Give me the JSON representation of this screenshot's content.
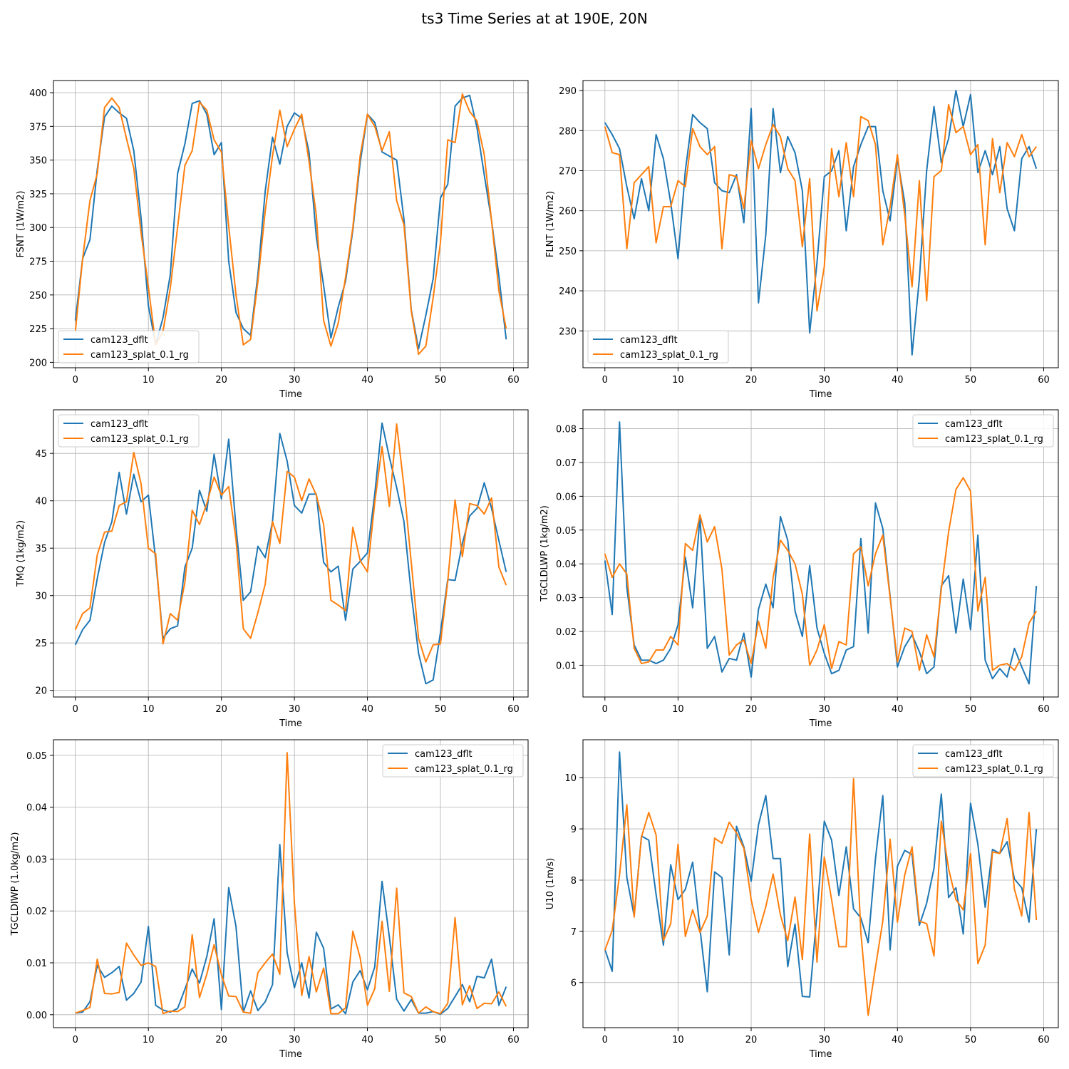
{
  "figure": {
    "title": "ts3 Time Series at at 190E, 20N"
  },
  "colors": {
    "dflt": "#1f77b4",
    "splat": "#ff7f0e",
    "grid": "#b0b0b0"
  },
  "chart_data": [
    {
      "type": "line",
      "xlabel": "Time",
      "ylabel": "FSNT (1W/m2)",
      "xlim": [
        -3,
        62
      ],
      "ylim": [
        196,
        409
      ],
      "xticks": [
        0,
        10,
        20,
        30,
        40,
        50,
        60
      ],
      "yticks": [
        200,
        225,
        250,
        275,
        300,
        325,
        350,
        375,
        400
      ],
      "ytick_labels": [
        "200",
        "225",
        "250",
        "275",
        "300",
        "325",
        "350",
        "375",
        "400"
      ],
      "grid": true,
      "legend_position": "lower-left",
      "series": [
        {
          "name": "cam123_dflt",
          "color": "#1f77b4",
          "values": [
            231,
            277,
            291,
            343,
            382,
            390,
            385,
            381,
            357,
            307,
            242,
            213,
            233,
            265,
            340,
            362,
            392,
            394,
            384,
            354,
            363,
            275,
            237,
            225,
            220,
            265,
            327,
            367,
            347,
            375,
            385,
            381,
            356,
            293,
            257,
            218,
            241,
            260,
            298,
            348,
            384,
            378,
            356,
            353,
            350,
            306,
            239,
            210,
            235,
            262,
            322,
            332,
            390,
            396,
            398,
            374,
            339,
            305,
            264,
            217
          ]
        },
        {
          "name": "cam123_splat_0.1_rg",
          "color": "#ff7f0e",
          "values": [
            223,
            277,
            320,
            340,
            389,
            396,
            389,
            366,
            344,
            296,
            256,
            213,
            223,
            255,
            300,
            346,
            357,
            393,
            387,
            365,
            356,
            301,
            250,
            213,
            217,
            260,
            312,
            353,
            387,
            360,
            373,
            384,
            349,
            309,
            231,
            212,
            229,
            263,
            300,
            353,
            384,
            375,
            357,
            371,
            320,
            302,
            238,
            206,
            212,
            248,
            289,
            365,
            363,
            399,
            386,
            379,
            354,
            305,
            253,
            225
          ]
        }
      ]
    },
    {
      "type": "line",
      "xlabel": "Time",
      "ylabel": "FLNT (1W/m2)",
      "xlim": [
        -3,
        62
      ],
      "ylim": [
        220.8,
        292.5
      ],
      "xticks": [
        0,
        10,
        20,
        30,
        40,
        50,
        60
      ],
      "yticks": [
        230,
        240,
        250,
        260,
        270,
        280,
        290
      ],
      "ytick_labels": [
        "230",
        "240",
        "250",
        "260",
        "270",
        "280",
        "290"
      ],
      "grid": true,
      "legend_position": "lower-left",
      "series": [
        {
          "name": "cam123_dflt",
          "color": "#1f77b4",
          "values": [
            282,
            279,
            275.5,
            266,
            258,
            268,
            260,
            279,
            273,
            262,
            248,
            270,
            284,
            282,
            280.5,
            267,
            265,
            264.5,
            269,
            257,
            285.5,
            237,
            254,
            285.5,
            269.5,
            278.5,
            274.5,
            265,
            229.5,
            247,
            268.5,
            270,
            275,
            255,
            271,
            276.5,
            281,
            281,
            265,
            257.5,
            273,
            262,
            224,
            243,
            270,
            286,
            272,
            278,
            290,
            281,
            289,
            269.5,
            275,
            269,
            276,
            260.5,
            255,
            273,
            276,
            270.5
          ]
        },
        {
          "name": "cam123_splat_0.1_rg",
          "color": "#ff7f0e",
          "values": [
            281,
            274.5,
            274,
            250.5,
            267,
            269,
            271,
            252,
            261,
            261,
            267.5,
            266,
            280.5,
            276,
            274,
            276,
            250.5,
            269,
            268.5,
            260.5,
            277.5,
            270.5,
            276.5,
            281.5,
            278.5,
            270.5,
            267.5,
            251,
            268,
            235,
            246,
            275.5,
            263.5,
            277,
            263.5,
            283.5,
            282.5,
            276.5,
            251.5,
            261,
            274,
            259,
            241,
            267.5,
            237.5,
            268.5,
            270,
            286.5,
            279.5,
            281,
            274,
            276.5,
            251.5,
            278,
            264.5,
            277,
            273.5,
            279,
            273.5,
            276
          ]
        }
      ]
    },
    {
      "type": "line",
      "xlabel": "Time",
      "ylabel": "TMQ (1kg/m2)",
      "xlim": [
        -3,
        62
      ],
      "ylim": [
        19.3,
        49.6
      ],
      "xticks": [
        0,
        10,
        20,
        30,
        40,
        50,
        60
      ],
      "yticks": [
        20,
        25,
        30,
        35,
        40,
        45
      ],
      "ytick_labels": [
        "20",
        "25",
        "30",
        "35",
        "40",
        "45"
      ],
      "grid": true,
      "legend_position": "upper-left",
      "series": [
        {
          "name": "cam123_dflt",
          "color": "#1f77b4",
          "values": [
            24.8,
            26.4,
            27.4,
            31.8,
            35.6,
            37.8,
            43.0,
            38.6,
            42.8,
            39.9,
            40.6,
            33.8,
            25.5,
            26.5,
            26.8,
            33.0,
            35.0,
            41.1,
            38.9,
            44.9,
            40.2,
            46.5,
            37.2,
            29.5,
            30.4,
            35.2,
            34.0,
            37.8,
            47.1,
            44.2,
            39.5,
            38.7,
            40.7,
            40.7,
            33.5,
            32.5,
            33.1,
            27.4,
            32.8,
            33.6,
            34.5,
            40.7,
            48.2,
            44.6,
            41.4,
            37.8,
            30.2,
            23.9,
            20.7,
            21.1,
            26.1,
            31.7,
            31.6,
            35.5,
            38.4,
            39.2,
            41.9,
            39.2,
            35.8,
            32.5
          ]
        },
        {
          "name": "cam123_splat_0.1_rg",
          "color": "#ff7f0e",
          "values": [
            26.4,
            28.1,
            28.7,
            34.3,
            36.7,
            36.8,
            39.5,
            39.9,
            45.1,
            41.8,
            35.0,
            34.4,
            24.9,
            28.1,
            27.4,
            31.4,
            39.0,
            37.5,
            39.7,
            42.5,
            40.6,
            41.5,
            35.9,
            26.5,
            25.5,
            28.2,
            31.2,
            37.8,
            35.5,
            43.1,
            42.5,
            40.0,
            42.3,
            40.6,
            37.5,
            29.5,
            29.0,
            28.4,
            37.2,
            33.7,
            32.5,
            39.8,
            45.7,
            39.4,
            48.1,
            41.5,
            33.5,
            25.5,
            23.0,
            24.8,
            24.9,
            31.5,
            40.1,
            34.1,
            39.7,
            39.5,
            38.6,
            40.3,
            33.0,
            31.1
          ]
        }
      ]
    },
    {
      "type": "line",
      "xlabel": "Time",
      "ylabel": "TGCLDLWP (1kg/m2)",
      "xlim": [
        -3,
        62
      ],
      "ylim": [
        0.0006,
        0.0856
      ],
      "xticks": [
        0,
        10,
        20,
        30,
        40,
        50,
        60
      ],
      "yticks": [
        0.01,
        0.02,
        0.03,
        0.04,
        0.05,
        0.06,
        0.07,
        0.08
      ],
      "ytick_labels": [
        "0.01",
        "0.02",
        "0.03",
        "0.04",
        "0.05",
        "0.06",
        "0.07",
        "0.08"
      ],
      "grid": true,
      "legend_position": "upper-right",
      "series": [
        {
          "name": "cam123_dflt",
          "color": "#1f77b4",
          "values": [
            0.041,
            0.025,
            0.082,
            0.033,
            0.016,
            0.0115,
            0.0115,
            0.0105,
            0.0115,
            0.015,
            0.022,
            0.042,
            0.027,
            0.054,
            0.015,
            0.0185,
            0.008,
            0.012,
            0.0115,
            0.0195,
            0.0065,
            0.0265,
            0.034,
            0.027,
            0.054,
            0.047,
            0.026,
            0.0185,
            0.0395,
            0.021,
            0.0135,
            0.0075,
            0.0085,
            0.0145,
            0.0155,
            0.0475,
            0.0195,
            0.058,
            0.0505,
            0.0305,
            0.0095,
            0.0155,
            0.019,
            0.014,
            0.0075,
            0.0095,
            0.0335,
            0.0365,
            0.0195,
            0.0355,
            0.0205,
            0.0485,
            0.0115,
            0.006,
            0.009,
            0.0065,
            0.015,
            0.0095,
            0.0045,
            0.0335
          ]
        },
        {
          "name": "cam123_splat_0.1_rg",
          "color": "#ff7f0e",
          "values": [
            0.043,
            0.036,
            0.04,
            0.037,
            0.015,
            0.0105,
            0.011,
            0.0145,
            0.0145,
            0.0185,
            0.016,
            0.046,
            0.044,
            0.0545,
            0.0465,
            0.051,
            0.0385,
            0.013,
            0.016,
            0.0175,
            0.0105,
            0.023,
            0.015,
            0.036,
            0.047,
            0.044,
            0.04,
            0.031,
            0.01,
            0.0145,
            0.022,
            0.009,
            0.017,
            0.016,
            0.043,
            0.045,
            0.0335,
            0.043,
            0.0485,
            0.03,
            0.011,
            0.021,
            0.02,
            0.0085,
            0.019,
            0.0125,
            0.0325,
            0.0495,
            0.062,
            0.0655,
            0.0615,
            0.026,
            0.036,
            0.0085,
            0.01,
            0.0105,
            0.0085,
            0.0125,
            0.0225,
            0.026
          ]
        }
      ]
    },
    {
      "type": "line",
      "xlabel": "Time",
      "ylabel": "TGCLDIWP (1.0kg/m2)",
      "xlim": [
        -3,
        62
      ],
      "ylim": [
        -0.0025,
        0.053
      ],
      "xticks": [
        0,
        10,
        20,
        30,
        40,
        50,
        60
      ],
      "yticks": [
        0,
        0.01,
        0.02,
        0.03,
        0.04,
        0.05
      ],
      "ytick_labels": [
        "0.00",
        "0.01",
        "0.02",
        "0.03",
        "0.04",
        "0.05"
      ],
      "grid": true,
      "legend_position": "upper-right",
      "series": [
        {
          "name": "cam123_dflt",
          "color": "#1f77b4",
          "values": [
            0.0003,
            0.0005,
            0.0025,
            0.0095,
            0.0072,
            0.0081,
            0.0093,
            0.0028,
            0.0041,
            0.0063,
            0.017,
            0.0018,
            0.0009,
            0.0005,
            0.0012,
            0.0049,
            0.0088,
            0.0061,
            0.0112,
            0.0185,
            0.001,
            0.0245,
            0.017,
            0.0005,
            0.0046,
            0.0008,
            0.0025,
            0.0058,
            0.0328,
            0.012,
            0.0052,
            0.01,
            0.0032,
            0.0159,
            0.0128,
            0.0011,
            0.0019,
            0.0002,
            0.0063,
            0.0085,
            0.0048,
            0.0092,
            0.0257,
            0.015,
            0.003,
            0.0007,
            0.0029,
            0.0003,
            0.0003,
            0.0006,
            0.0001,
            0.0012,
            0.0035,
            0.0058,
            0.0025,
            0.0074,
            0.0071,
            0.0107,
            0.0018,
            0.0054
          ]
        },
        {
          "name": "cam123_splat_0.1_rg",
          "color": "#ff7f0e",
          "values": [
            0.0003,
            0.0008,
            0.0014,
            0.0107,
            0.0041,
            0.004,
            0.0043,
            0.0138,
            0.0115,
            0.0095,
            0.01,
            0.0093,
            0.0002,
            0.0007,
            0.0006,
            0.0015,
            0.0154,
            0.0033,
            0.0078,
            0.0135,
            0.0077,
            0.0036,
            0.0035,
            0.0005,
            0.0003,
            0.0081,
            0.01,
            0.0117,
            0.0078,
            0.0505,
            0.0215,
            0.0037,
            0.0112,
            0.0044,
            0.009,
            0.0002,
            0.0002,
            0.0013,
            0.0161,
            0.011,
            0.0018,
            0.005,
            0.018,
            0.0045,
            0.0244,
            0.0042,
            0.0035,
            0.0003,
            0.0015,
            0.0006,
            0.0002,
            0.0022,
            0.0187,
            0.0019,
            0.0056,
            0.0012,
            0.0022,
            0.0021,
            0.0044,
            0.0016
          ]
        }
      ]
    },
    {
      "type": "line",
      "xlabel": "Time",
      "ylabel": "U10 (1m/s)",
      "xlim": [
        -3,
        62
      ],
      "ylim": [
        5.12,
        10.74
      ],
      "xticks": [
        0,
        10,
        20,
        30,
        40,
        50,
        60
      ],
      "yticks": [
        6,
        7,
        8,
        9,
        10
      ],
      "ytick_labels": [
        "6",
        "7",
        "8",
        "9",
        "10"
      ],
      "grid": true,
      "legend_position": "upper-right",
      "series": [
        {
          "name": "cam123_dflt",
          "color": "#1f77b4",
          "values": [
            6.65,
            6.22,
            10.5,
            8.05,
            7.3,
            8.86,
            8.78,
            7.72,
            6.73,
            8.3,
            7.62,
            7.82,
            8.35,
            7.05,
            5.82,
            8.16,
            8.05,
            6.54,
            9.05,
            8.65,
            7.98,
            9.08,
            9.65,
            8.42,
            8.42,
            6.31,
            7.14,
            5.73,
            5.72,
            7.35,
            9.15,
            8.78,
            7.7,
            8.65,
            7.44,
            7.26,
            6.78,
            8.42,
            9.65,
            6.64,
            8.27,
            8.58,
            8.5,
            7.12,
            7.55,
            8.23,
            9.68,
            7.66,
            7.85,
            6.95,
            9.5,
            8.7,
            7.47,
            8.6,
            8.52,
            8.75,
            8.02,
            7.85,
            7.18,
            9.0
          ]
        },
        {
          "name": "cam123_splat_0.1_rg",
          "color": "#ff7f0e",
          "values": [
            6.63,
            7.02,
            8.1,
            9.47,
            7.28,
            8.84,
            9.32,
            8.88,
            6.82,
            7.15,
            8.7,
            6.9,
            7.42,
            6.98,
            7.3,
            8.82,
            8.72,
            9.13,
            8.92,
            8.62,
            7.62,
            6.98,
            7.48,
            8.12,
            7.32,
            6.82,
            7.67,
            6.45,
            8.9,
            6.4,
            8.45,
            7.62,
            6.7,
            6.7,
            9.98,
            6.98,
            5.36,
            6.3,
            7.2,
            8.8,
            7.18,
            8.1,
            8.65,
            7.2,
            7.15,
            6.52,
            9.15,
            8.22,
            7.62,
            7.42,
            8.52,
            6.37,
            6.73,
            8.55,
            8.52,
            9.2,
            7.82,
            7.3,
            9.32,
            7.22
          ]
        }
      ]
    }
  ]
}
